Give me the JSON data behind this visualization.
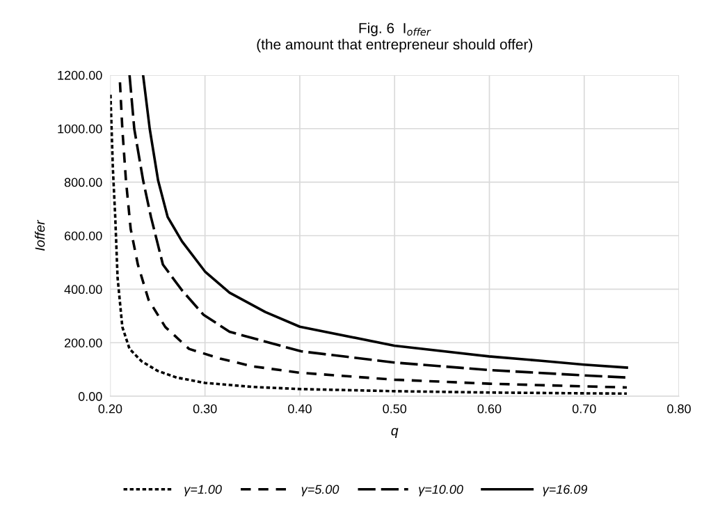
{
  "chart_data": {
    "type": "line",
    "title": "Fig. 6  I$_{offer}$",
    "subtitle": "(the amount that entrepreneur should offer)",
    "xlabel": "q",
    "ylabel": "Ioffer",
    "xlim": [
      0.2,
      0.8
    ],
    "xticks": [
      {
        "value": 0.2,
        "label": "0.20"
      },
      {
        "value": 0.3,
        "label": "0.30"
      },
      {
        "value": 0.4,
        "label": "0.40"
      },
      {
        "value": 0.5,
        "label": "0.50"
      },
      {
        "value": 0.6,
        "label": "0.60"
      },
      {
        "value": 0.7,
        "label": "0.70"
      },
      {
        "value": 0.8,
        "label": "0.80"
      }
    ],
    "ylim": [
      0,
      1200
    ],
    "yticks": [
      {
        "value": 0,
        "label": "0.00"
      },
      {
        "value": 200,
        "label": "200.00"
      },
      {
        "value": 400,
        "label": "400.00"
      },
      {
        "value": 600,
        "label": "600.00"
      },
      {
        "value": 800,
        "label": "800.00"
      },
      {
        "value": 1000,
        "label": "1000.00"
      },
      {
        "value": 1200,
        "label": "1200.00"
      }
    ],
    "grid": true,
    "legend": "bottom",
    "marker": "none",
    "series": [
      {
        "name": "γ=1.00",
        "color": "#000000",
        "line_style": "dotted",
        "x": [
          0.2003,
          0.2028,
          0.2053,
          0.2078,
          0.2128,
          0.2204,
          0.233,
          0.25,
          0.27,
          0.3,
          0.35,
          0.4,
          0.5,
          0.6,
          0.7,
          0.745
        ],
        "values": [
          1127,
          853,
          670,
          442,
          259,
          177,
          131,
          95,
          70,
          50,
          35,
          27,
          19,
          14,
          11,
          10
        ]
      },
      {
        "name": "γ=5.00",
        "color": "#000000",
        "line_style": "dashed",
        "x": [
          0.2103,
          0.2128,
          0.2166,
          0.2216,
          0.2292,
          0.2405,
          0.2581,
          0.2832,
          0.3159,
          0.35,
          0.4,
          0.5,
          0.6,
          0.7,
          0.745
        ],
        "values": [
          1173,
          999,
          807,
          625,
          492,
          360,
          259,
          177,
          141,
          112,
          88,
          62,
          47,
          37,
          33
        ]
      },
      {
        "name": "γ=10.00",
        "color": "#000000",
        "line_style": "longdash",
        "x": [
          0.2204,
          0.2254,
          0.2347,
          0.243,
          0.2556,
          0.2757,
          0.2983,
          0.3259,
          0.4013,
          0.5,
          0.6,
          0.7,
          0.745
        ],
        "values": [
          1200,
          999,
          807,
          670,
          492,
          396,
          305,
          241,
          168,
          126,
          98,
          78,
          70
        ]
      },
      {
        "name": "γ=16.09",
        "color": "#000000",
        "line_style": "solid",
        "x": [
          0.2347,
          0.2417,
          0.2505,
          0.2606,
          0.2757,
          0.3,
          0.3259,
          0.3636,
          0.4,
          0.4997,
          0.5996,
          0.653,
          0.7,
          0.745
        ],
        "values": [
          1200,
          999,
          807,
          670,
          579,
          466,
          387,
          315,
          260,
          189,
          149,
          133,
          118,
          107
        ]
      }
    ]
  }
}
